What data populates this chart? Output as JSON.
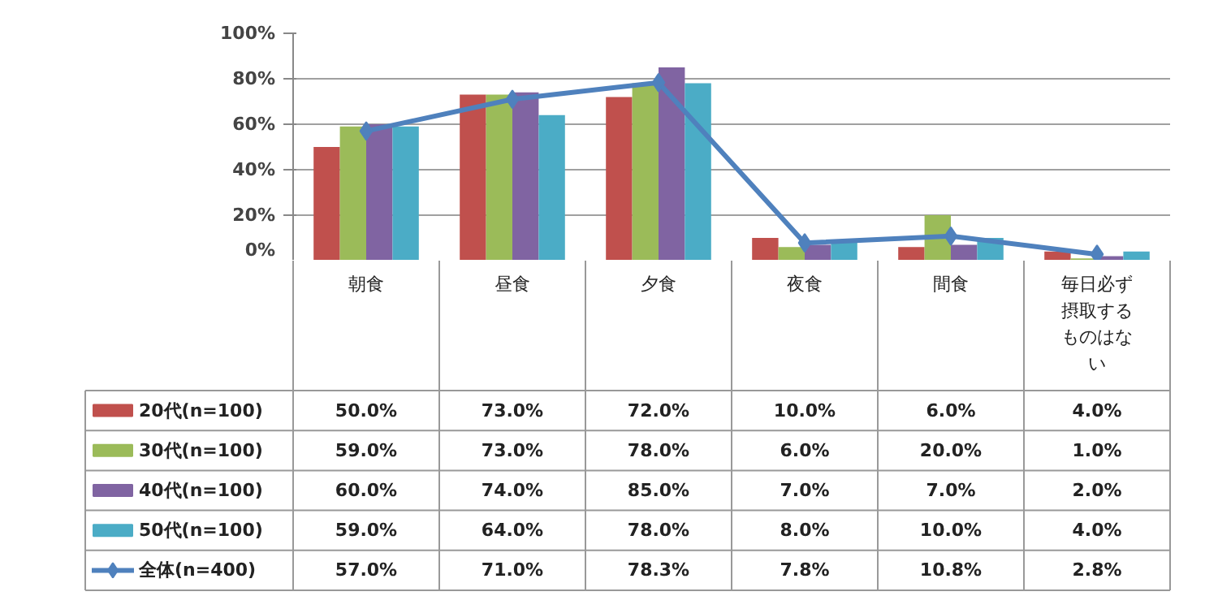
{
  "chart_data": {
    "type": "bar",
    "categories": [
      "朝食",
      "昼食",
      "夕食",
      "夜食",
      "間食",
      "毎日必ず摂取するものはない"
    ],
    "legend": "bottom left",
    "series": [
      {
        "name": "20代(n=100)",
        "color": "#c0504d",
        "values": [
          50.0,
          73.0,
          72.0,
          10.0,
          6.0,
          4.0
        ],
        "value_labels": [
          "50.0%",
          "73.0%",
          "72.0%",
          "10.0%",
          "6.0%",
          "4.0%"
        ]
      },
      {
        "name": "30代(n=100)",
        "color": "#9bbb59",
        "values": [
          59.0,
          73.0,
          78.0,
          6.0,
          20.0,
          1.0
        ],
        "value_labels": [
          "59.0%",
          "73.0%",
          "78.0%",
          "6.0%",
          "20.0%",
          "1.0%"
        ]
      },
      {
        "name": "40代(n=100)",
        "color": "#8064a2",
        "values": [
          60.0,
          74.0,
          85.0,
          7.0,
          7.0,
          2.0
        ],
        "value_labels": [
          "60.0%",
          "74.0%",
          "85.0%",
          "7.0%",
          "7.0%",
          "2.0%"
        ]
      },
      {
        "name": "50代(n=100)",
        "color": "#4bacc6",
        "values": [
          59.0,
          64.0,
          78.0,
          8.0,
          10.0,
          4.0
        ],
        "value_labels": [
          "59.0%",
          "64.0%",
          "78.0%",
          "8.0%",
          "10.0%",
          "4.0%"
        ]
      },
      {
        "name": "全体(n=400)",
        "type": "line",
        "color": "#4f81bd",
        "marker": "diamond",
        "values": [
          57.0,
          71.0,
          78.3,
          7.8,
          10.8,
          2.8
        ],
        "value_labels": [
          "57.0%",
          "71.0%",
          "78.3%",
          "7.8%",
          "10.8%",
          "2.8%"
        ]
      }
    ],
    "ylim": [
      0,
      100
    ],
    "yticks": [
      {
        "value": 0,
        "label": "0%"
      },
      {
        "value": 20,
        "label": "20%"
      },
      {
        "value": 40,
        "label": "40%"
      },
      {
        "value": 60,
        "label": "60%"
      },
      {
        "value": 80,
        "label": "80%"
      },
      {
        "value": 100,
        "label": "100%"
      }
    ],
    "grid": "y"
  }
}
